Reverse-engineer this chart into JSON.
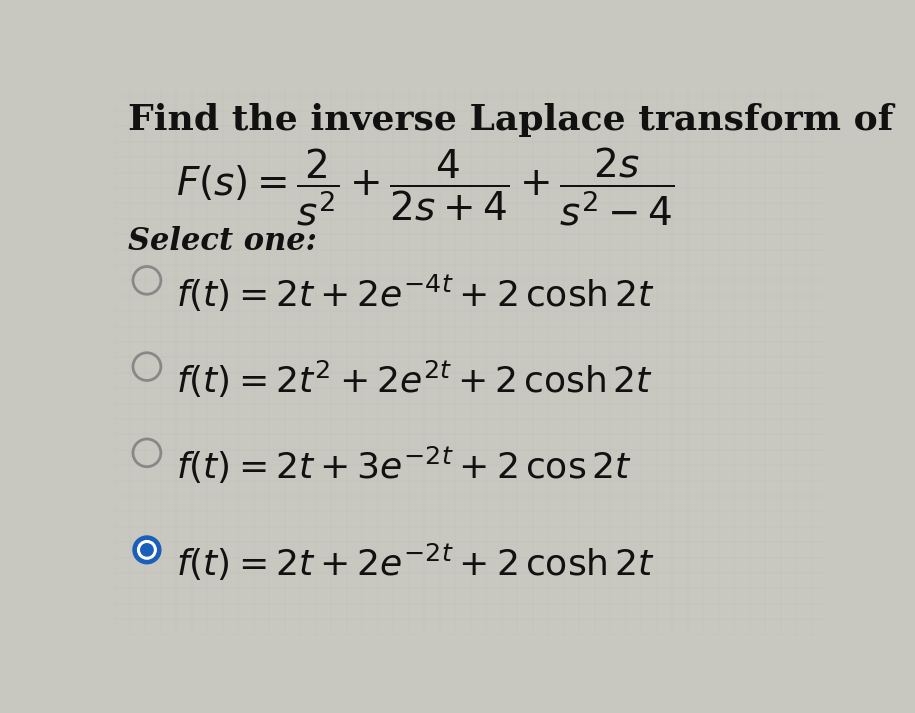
{
  "background_color": "#c8c8c0",
  "title_text": "Find the inverse Laplace transform of",
  "select_one_text": "Select one:",
  "options_math": [
    "f(t) = 2t + 2e^{-4t} + 2\\,\\mathrm{cosh}\\,2t",
    "f(t) = 2t^2 + 2e^{2t} + 2\\,\\mathrm{cosh}\\,2t",
    "f(t) = 2t + 3e^{-2t} + 2\\,\\mathrm{cos}\\,2t",
    "f(t) = 2t + 2e^{-2t} + 2\\,\\mathrm{cosh}\\,2t"
  ],
  "selected_idx": 3,
  "text_color": "#111111",
  "circle_unselected_color": "#888888",
  "circle_selected_blue": "#1a5fba",
  "title_fontsize": 26,
  "formula_fontsize": 28,
  "select_fontsize": 22,
  "option_fontsize": 26
}
